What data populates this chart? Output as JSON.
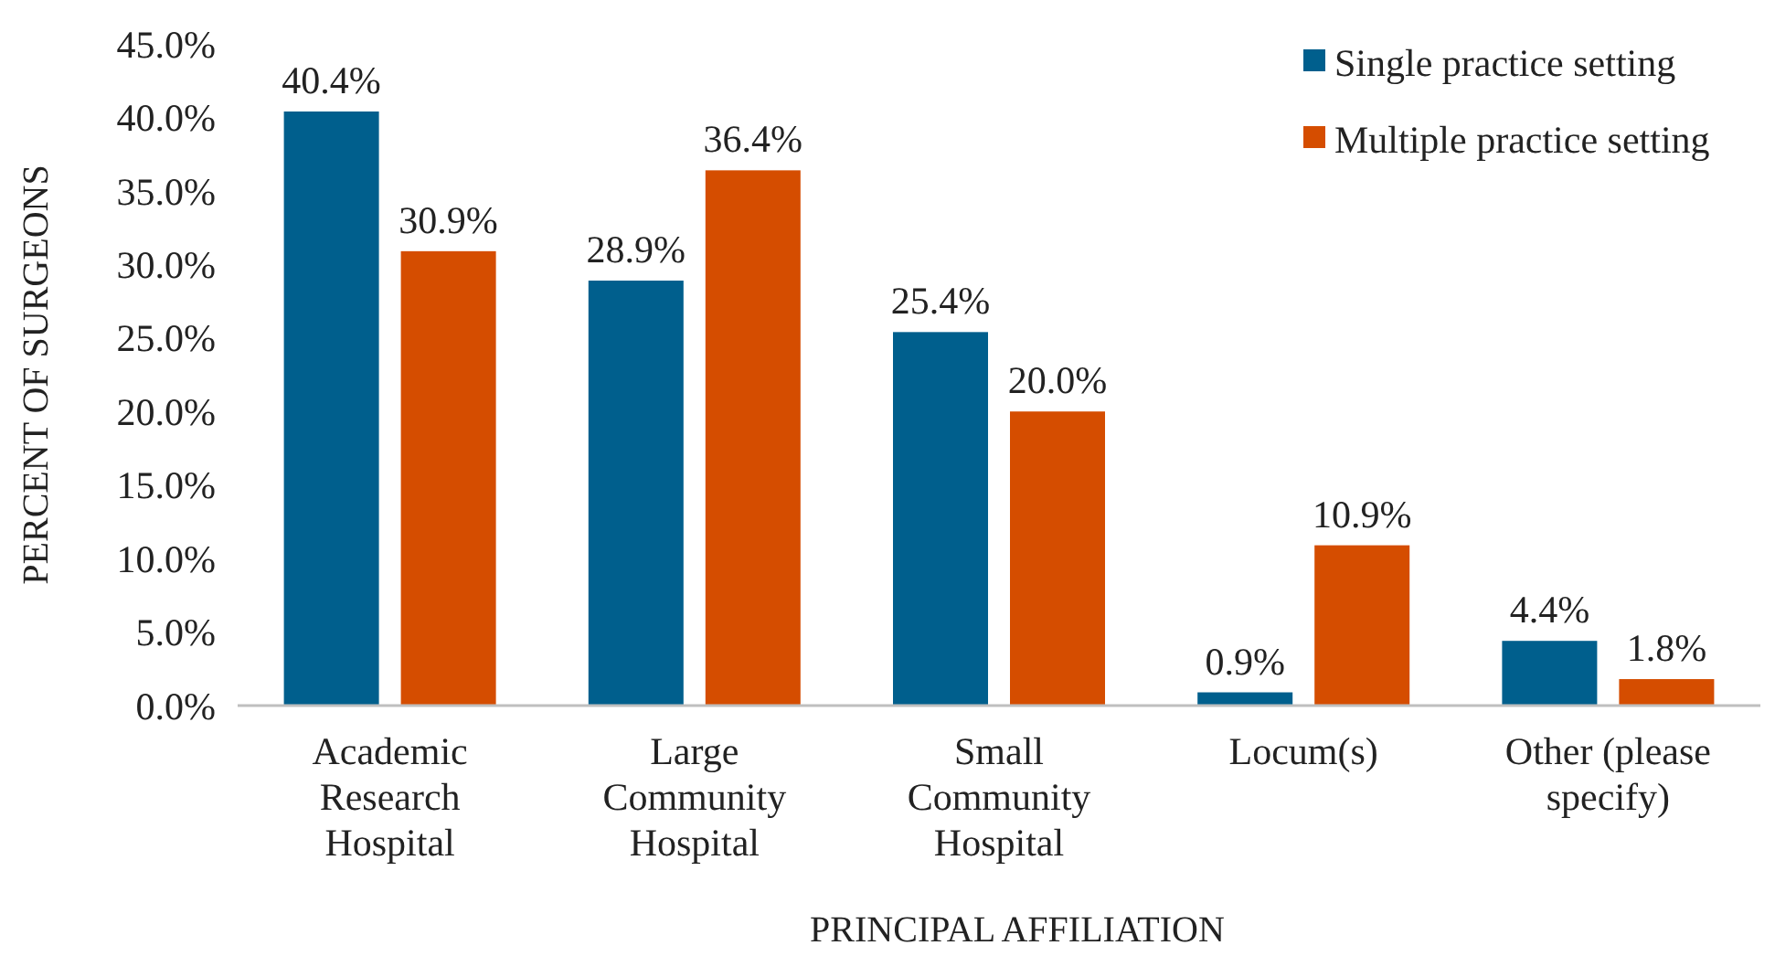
{
  "chart_data": {
    "type": "bar",
    "xlabel": "PRINCIPAL AFFILIATION",
    "ylabel": "PERCENT OF SURGEONS",
    "categories": [
      "Academic Research Hospital",
      "Large Community Hospital",
      "Small Community Hospital",
      "Locum(s)",
      "Other (please specify)"
    ],
    "series": [
      {
        "name": "Single practice setting",
        "color": "#005f8d",
        "values": [
          40.4,
          28.9,
          25.4,
          0.9,
          4.4
        ],
        "value_labels": [
          "40.4%",
          "28.9%",
          "25.4%",
          "0.9%",
          "4.4%"
        ]
      },
      {
        "name": "Multiple practice setting",
        "color": "#d54d00",
        "values": [
          30.9,
          36.4,
          20.0,
          10.9,
          1.8
        ],
        "value_labels": [
          "30.9%",
          "36.4%",
          "20.0%",
          "10.9%",
          "1.8%"
        ]
      }
    ],
    "ylim": [
      0,
      45
    ],
    "yticks": [
      {
        "value": 0,
        "label": "0.0%"
      },
      {
        "value": 5,
        "label": "5.0%"
      },
      {
        "value": 10,
        "label": "10.0%"
      },
      {
        "value": 15,
        "label": "15.0%"
      },
      {
        "value": 20,
        "label": "20.0%"
      },
      {
        "value": 25,
        "label": "25.0%"
      },
      {
        "value": 30,
        "label": "30.0%"
      },
      {
        "value": 35,
        "label": "35.0%"
      },
      {
        "value": 40,
        "label": "40.0%"
      },
      {
        "value": 45,
        "label": "45.0%"
      }
    ],
    "grid": false,
    "legend": "top right"
  }
}
